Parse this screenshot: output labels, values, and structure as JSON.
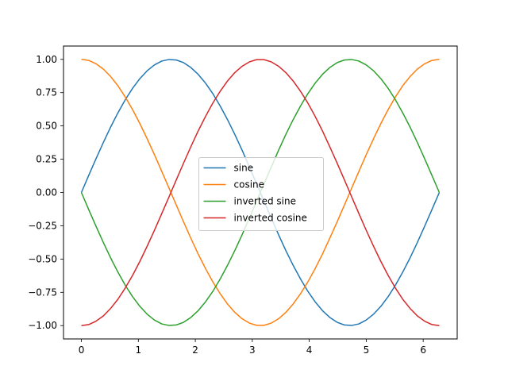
{
  "chart_data": {
    "type": "line",
    "title": "",
    "xlabel": "",
    "ylabel": "",
    "xlim": [
      -0.314,
      6.597
    ],
    "ylim": [
      -1.1,
      1.1
    ],
    "x_ticks": [
      {
        "value": 0,
        "label": "0"
      },
      {
        "value": 1,
        "label": "1"
      },
      {
        "value": 2,
        "label": "2"
      },
      {
        "value": 3,
        "label": "3"
      },
      {
        "value": 4,
        "label": "4"
      },
      {
        "value": 5,
        "label": "5"
      },
      {
        "value": 6,
        "label": "6"
      }
    ],
    "y_ticks": [
      {
        "value": -1.0,
        "label": "−1.00"
      },
      {
        "value": -0.75,
        "label": "−0.75"
      },
      {
        "value": -0.5,
        "label": "−0.50"
      },
      {
        "value": -0.25,
        "label": "−0.25"
      },
      {
        "value": 0.0,
        "label": "0.00"
      },
      {
        "value": 0.25,
        "label": "0.25"
      },
      {
        "value": 0.5,
        "label": "0.50"
      },
      {
        "value": 0.75,
        "label": "0.75"
      },
      {
        "value": 1.0,
        "label": "1.00"
      }
    ],
    "grid": false,
    "legend_position": "center",
    "x": [
      0,
      0.128,
      0.256,
      0.385,
      0.513,
      0.641,
      0.769,
      0.898,
      1.026,
      1.154,
      1.282,
      1.41,
      1.539,
      1.667,
      1.795,
      1.923,
      2.051,
      2.18,
      2.308,
      2.436,
      2.564,
      2.692,
      2.821,
      2.949,
      3.077,
      3.205,
      3.334,
      3.462,
      3.59,
      3.718,
      3.847,
      3.975,
      4.103,
      4.231,
      4.359,
      4.488,
      4.616,
      4.744,
      4.872,
      5.0,
      5.129,
      5.257,
      5.385,
      5.513,
      5.641,
      5.77,
      5.898,
      6.026,
      6.154,
      6.283
    ],
    "series": [
      {
        "name": "sine",
        "color": "#1f77b4",
        "values": [
          0.0,
          0.128,
          0.253,
          0.375,
          0.491,
          0.598,
          0.696,
          0.782,
          0.855,
          0.914,
          0.958,
          0.987,
          0.999,
          0.995,
          0.975,
          0.938,
          0.887,
          0.821,
          0.742,
          0.65,
          0.548,
          0.437,
          0.318,
          0.192,
          0.064,
          -0.064,
          -0.192,
          -0.318,
          -0.437,
          -0.548,
          -0.65,
          -0.742,
          -0.821,
          -0.887,
          -0.938,
          -0.975,
          -0.995,
          -0.999,
          -0.987,
          -0.958,
          -0.914,
          -0.855,
          -0.782,
          -0.696,
          -0.598,
          -0.491,
          -0.375,
          -0.253,
          -0.128,
          0.0
        ]
      },
      {
        "name": "cosine",
        "color": "#ff7f0e",
        "values": [
          1.0,
          0.992,
          0.967,
          0.927,
          0.871,
          0.802,
          0.718,
          0.623,
          0.518,
          0.404,
          0.284,
          0.159,
          0.032,
          -0.096,
          -0.222,
          -0.345,
          -0.463,
          -0.572,
          -0.672,
          -0.76,
          -0.837,
          -0.9,
          -0.948,
          -0.981,
          -0.998,
          -0.998,
          -0.981,
          -0.948,
          -0.9,
          -0.837,
          -0.76,
          -0.672,
          -0.572,
          -0.463,
          -0.345,
          -0.222,
          -0.096,
          0.032,
          0.159,
          0.284,
          0.404,
          0.518,
          0.623,
          0.718,
          0.802,
          0.871,
          0.927,
          0.967,
          0.992,
          1.0
        ]
      },
      {
        "name": "inverted sine",
        "color": "#2ca02c",
        "values": [
          0.0,
          -0.128,
          -0.253,
          -0.375,
          -0.491,
          -0.598,
          -0.696,
          -0.782,
          -0.855,
          -0.914,
          -0.958,
          -0.987,
          -0.999,
          -0.995,
          -0.975,
          -0.938,
          -0.887,
          -0.821,
          -0.742,
          -0.65,
          -0.548,
          -0.437,
          -0.318,
          -0.192,
          -0.064,
          0.064,
          0.192,
          0.318,
          0.437,
          0.548,
          0.65,
          0.742,
          0.821,
          0.887,
          0.938,
          0.975,
          0.995,
          0.999,
          0.987,
          0.958,
          0.914,
          0.855,
          0.782,
          0.696,
          0.598,
          0.491,
          0.375,
          0.253,
          0.128,
          0.0
        ]
      },
      {
        "name": "inverted cosine",
        "color": "#d62728",
        "values": [
          -1.0,
          -0.992,
          -0.967,
          -0.927,
          -0.871,
          -0.802,
          -0.718,
          -0.623,
          -0.518,
          -0.404,
          -0.284,
          -0.159,
          -0.032,
          0.096,
          0.222,
          0.345,
          0.463,
          0.572,
          0.672,
          0.76,
          0.837,
          0.9,
          0.948,
          0.981,
          0.998,
          0.998,
          0.981,
          0.948,
          0.9,
          0.837,
          0.76,
          0.672,
          0.572,
          0.463,
          0.345,
          0.222,
          0.096,
          -0.032,
          -0.159,
          -0.284,
          -0.404,
          -0.518,
          -0.623,
          -0.718,
          -0.802,
          -0.871,
          -0.927,
          -0.967,
          -0.992,
          -1.0
        ]
      }
    ]
  }
}
